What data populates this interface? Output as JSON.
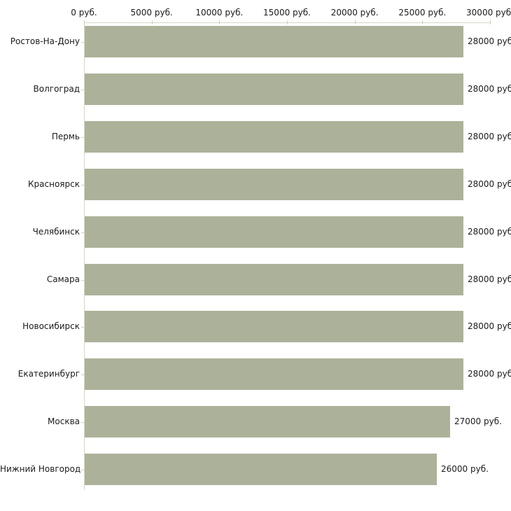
{
  "chart_data": {
    "type": "bar",
    "orientation": "horizontal",
    "categories": [
      "Ростов-На-Дону",
      "Волгоград",
      "Пермь",
      "Красноярск",
      "Челябинск",
      "Самара",
      "Новосибирск",
      "Екатеринбург",
      "Москва",
      "Нижний Новгород"
    ],
    "values": [
      28000,
      28000,
      28000,
      28000,
      28000,
      28000,
      28000,
      28000,
      27000,
      26000
    ],
    "value_labels": [
      "28000 руб.",
      "28000 руб.",
      "28000 руб.",
      "28000 руб.",
      "28000 руб.",
      "28000 руб.",
      "28000 руб.",
      "28000 руб.",
      "27000 руб.",
      "26000 руб."
    ],
    "x_ticks": [
      "0 руб.",
      "5000 руб.",
      "10000 руб.",
      "15000 руб.",
      "20000 руб.",
      "25000 руб.",
      "30000 руб."
    ],
    "xlim": [
      0,
      30000
    ],
    "unit": "руб.",
    "title": "",
    "xlabel": "",
    "ylabel": "",
    "grid": false,
    "legend": false,
    "bar_color": "#acb299",
    "axis_color": "#d8d6c6",
    "tick_color": "#d0cfb6",
    "text_color": "#1a1a1a"
  }
}
